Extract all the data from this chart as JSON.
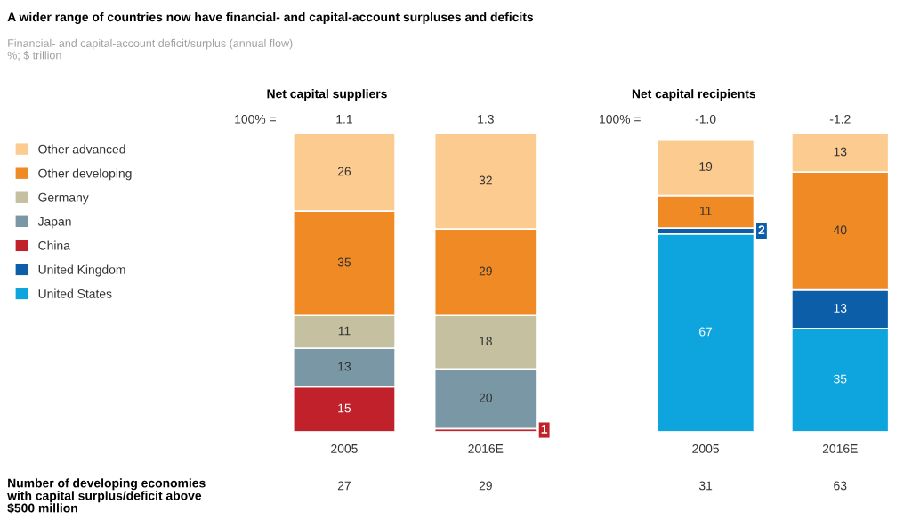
{
  "chart_data": [
    {
      "type": "bar",
      "stacked": true,
      "data_labels": true,
      "legend": "left",
      "grid": false,
      "relative": false,
      "title": "A wider range of countries now have financial- and capital-account surpluses and deficits",
      "subtitle": "Financial- and capital-account deficit/surplus (annual flow)\n%; $ trillion",
      "categories": [
        "2005",
        "2016E"
      ],
      "annotations": [
        "Net capital suppliers",
        "100% =",
        "1.1",
        "1.3",
        "Number of developing economies\nwith capital surplus/deficit above\n$500 million",
        "27",
        "29"
      ],
      "series": [
        {
          "name": "United States",
          "color": "#0ea5de",
          "values": [
            null,
            null
          ]
        },
        {
          "name": "United Kingdom",
          "color": "#0c5ea8",
          "values": [
            null,
            null
          ]
        },
        {
          "name": "China",
          "color": "#c0212a",
          "values": [
            15,
            1
          ]
        },
        {
          "name": "Japan",
          "color": "#7a97a6",
          "values": [
            13,
            20
          ]
        },
        {
          "name": "Germany",
          "color": "#c4c0a0",
          "values": [
            11,
            18
          ]
        },
        {
          "name": "Other developing",
          "color": "#f08a24",
          "values": [
            35,
            29
          ]
        },
        {
          "name": "Other advanced",
          "color": "#fccb90",
          "values": [
            26,
            32
          ]
        }
      ]
    },
    {
      "type": "bar",
      "stacked": true,
      "data_labels": true,
      "grid": false,
      "relative": false,
      "title": "Net capital recipients",
      "categories": [
        "2005",
        "2016E"
      ],
      "annotations": [
        "100% =",
        "-1.0",
        "-1.2",
        "31",
        "63"
      ],
      "series": [
        {
          "color": "#0ea5de",
          "values": [
            67,
            35
          ]
        },
        {
          "color": "#0c5ea8",
          "values": [
            2,
            13
          ]
        },
        {
          "color": "#f08a24",
          "values": [
            11,
            40
          ]
        },
        {
          "color": "#fccb90",
          "values": [
            19,
            13
          ]
        }
      ]
    }
  ]
}
